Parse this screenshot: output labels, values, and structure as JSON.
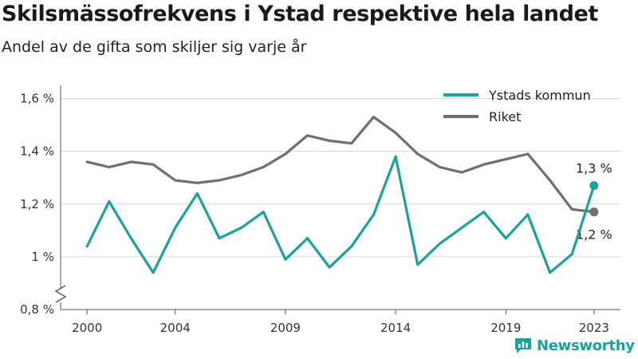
{
  "header": {
    "title": "Skilsmässofrekvens i Ystad respektive hela landet",
    "subtitle": "Andel av de gifta som skiljer sig varje år"
  },
  "brand": {
    "name": "Newsworthy",
    "icon": "newsworthy-logo-icon",
    "color": "#1aa39a"
  },
  "chart_data": {
    "type": "line",
    "x": [
      2000,
      2001,
      2002,
      2003,
      2004,
      2005,
      2006,
      2007,
      2008,
      2009,
      2010,
      2011,
      2012,
      2013,
      2014,
      2015,
      2016,
      2017,
      2018,
      2019,
      2020,
      2021,
      2022,
      2023
    ],
    "x_ticks": [
      2000,
      2004,
      2009,
      2014,
      2019,
      2023
    ],
    "x_tick_labels": [
      "2000",
      "2004",
      "2009",
      "2014",
      "2019",
      "2023"
    ],
    "xlim": [
      1998.8,
      2024.2
    ],
    "ylim": [
      0.8,
      1.65
    ],
    "y_ticks": [
      0.8,
      1.0,
      1.2,
      1.4,
      1.6
    ],
    "y_tick_labels": [
      "0,8 %",
      "1 %",
      "1,2 %",
      "1,4 %",
      "1,6 %"
    ],
    "y_axis_break": true,
    "grid": "horizontal",
    "legend_position": "top-right",
    "series": [
      {
        "name": "Ystads kommun",
        "color": "#1aa39a",
        "values": [
          1.04,
          1.21,
          1.07,
          0.94,
          1.11,
          1.24,
          1.07,
          1.11,
          1.17,
          0.99,
          1.07,
          0.96,
          1.04,
          1.16,
          1.38,
          0.97,
          1.05,
          1.11,
          1.17,
          1.07,
          1.16,
          0.94,
          1.01,
          1.27
        ],
        "end_label": "1,3 %",
        "end_label_position": "above"
      },
      {
        "name": "Riket",
        "color": "#6e6e73",
        "values": [
          1.36,
          1.34,
          1.36,
          1.35,
          1.29,
          1.28,
          1.29,
          1.31,
          1.34,
          1.39,
          1.46,
          1.44,
          1.43,
          1.53,
          1.47,
          1.39,
          1.34,
          1.32,
          1.35,
          1.37,
          1.39,
          1.29,
          1.18,
          1.17
        ],
        "end_label": "1,2 %",
        "end_label_position": "below"
      }
    ]
  }
}
